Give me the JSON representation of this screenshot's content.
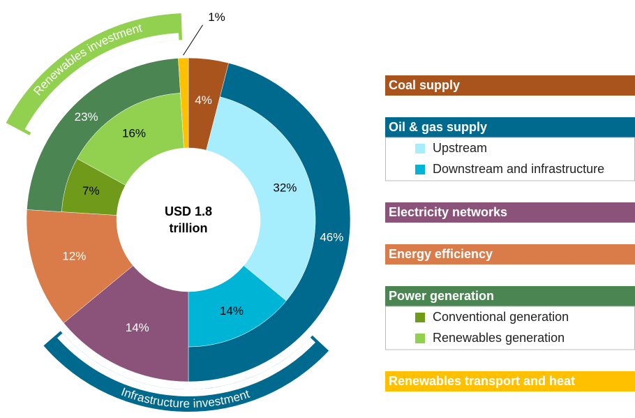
{
  "chart_data": {
    "type": "nested-donut",
    "center_label": [
      "USD 1.8",
      "trillion"
    ],
    "categories": [
      {
        "name": "Coal supply",
        "color": "#a9541d",
        "value": 4,
        "value_label": "4%",
        "children": []
      },
      {
        "name": "Oil & gas supply",
        "color": "#006a8e",
        "value": 46,
        "value_label": "46%",
        "children": [
          {
            "name": "Upstream",
            "color": "#a6eefe",
            "value": 32,
            "value_label": "32%"
          },
          {
            "name": "Downstream and infrastructure",
            "color": "#00b4d6",
            "value": 14,
            "value_label": "14%"
          }
        ]
      },
      {
        "name": "Electricity networks",
        "color": "#8c537a",
        "value": 14,
        "value_label": "14%",
        "children": []
      },
      {
        "name": "Energy efficiency",
        "color": "#d97c49",
        "value": 12,
        "value_label": "12%",
        "children": []
      },
      {
        "name": "Power generation",
        "color": "#4a8552",
        "value": 23,
        "value_label": "23%",
        "children": [
          {
            "name": "Conventional generation",
            "color": "#6f9a1a",
            "value": 7,
            "value_label": "7%"
          },
          {
            "name": "Renewables generation",
            "color": "#92d050",
            "value": 16,
            "value_label": "16%"
          }
        ]
      },
      {
        "name": "Renewables transport and heat",
        "color": "#ffc000",
        "value": 1,
        "value_label": "1%",
        "children": []
      }
    ],
    "bands": [
      {
        "label": "Renewables investment",
        "color": "#92d050"
      },
      {
        "label": "Infrastructure investment",
        "color": "#006a8e"
      }
    ]
  }
}
